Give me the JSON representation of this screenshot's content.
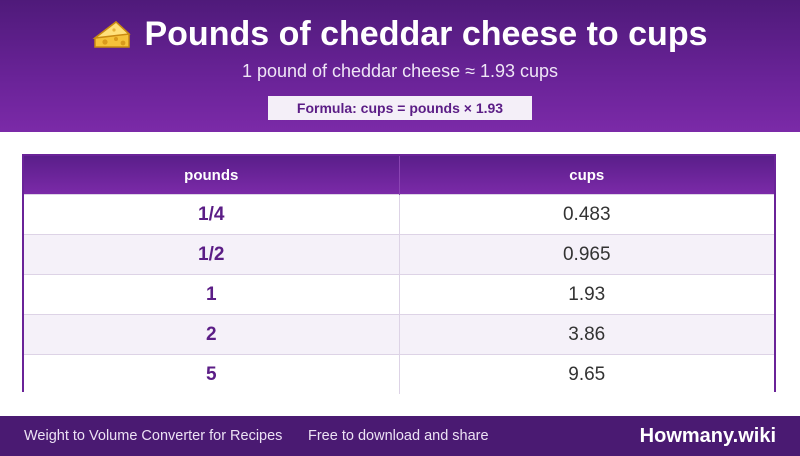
{
  "header": {
    "icon": "cheese-icon",
    "title": "Pounds of cheddar cheese to cups",
    "subtitle": "1 pound of cheddar cheese ≈ 1.93 cups",
    "formula": "Formula: cups = pounds × 1.93"
  },
  "table": {
    "columns": [
      "pounds",
      "cups"
    ],
    "rows": [
      {
        "pounds": "1/4",
        "cups": "0.483"
      },
      {
        "pounds": "1/2",
        "cups": "0.965"
      },
      {
        "pounds": "1",
        "cups": "1.93"
      },
      {
        "pounds": "2",
        "cups": "3.86"
      },
      {
        "pounds": "5",
        "cups": "9.65"
      }
    ]
  },
  "footer": {
    "left_text": "Weight to Volume Converter for Recipes",
    "tagline": "Free to download and share",
    "brand": "Howmany.wiki"
  },
  "colors": {
    "header_purple": "#6a2398",
    "footer_purple": "#4a1a72",
    "accent_text": "#5b1d86",
    "stripe": "#f5f1f9"
  }
}
